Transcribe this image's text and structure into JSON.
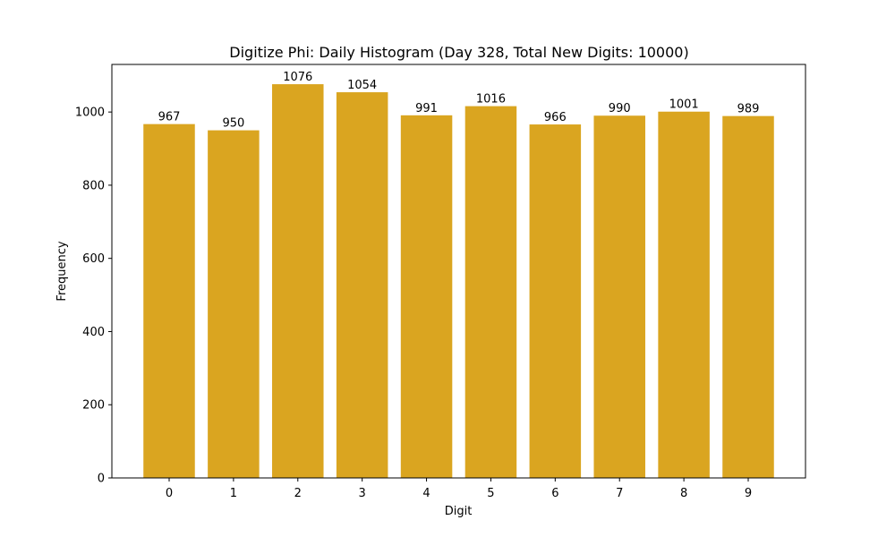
{
  "chart_data": {
    "type": "bar",
    "title": "Digitize Phi: Daily Histogram (Day 328, Total New Digits: 10000)",
    "xlabel": "Digit",
    "ylabel": "Frequency",
    "categories": [
      "0",
      "1",
      "2",
      "3",
      "4",
      "5",
      "6",
      "7",
      "8",
      "9"
    ],
    "values": [
      967,
      950,
      1076,
      1054,
      991,
      1016,
      966,
      990,
      1001,
      989
    ],
    "data_labels": [
      "967",
      "950",
      "1076",
      "1054",
      "991",
      "1016",
      "966",
      "990",
      "1001",
      "989"
    ],
    "yticks": [
      0,
      200,
      400,
      600,
      800,
      1000
    ],
    "ytick_labels": [
      "0",
      "200",
      "400",
      "600",
      "800",
      "1000"
    ],
    "ylim": [
      0,
      1130
    ],
    "grid": false,
    "legend": "none",
    "bar_color": "#DAA520"
  }
}
